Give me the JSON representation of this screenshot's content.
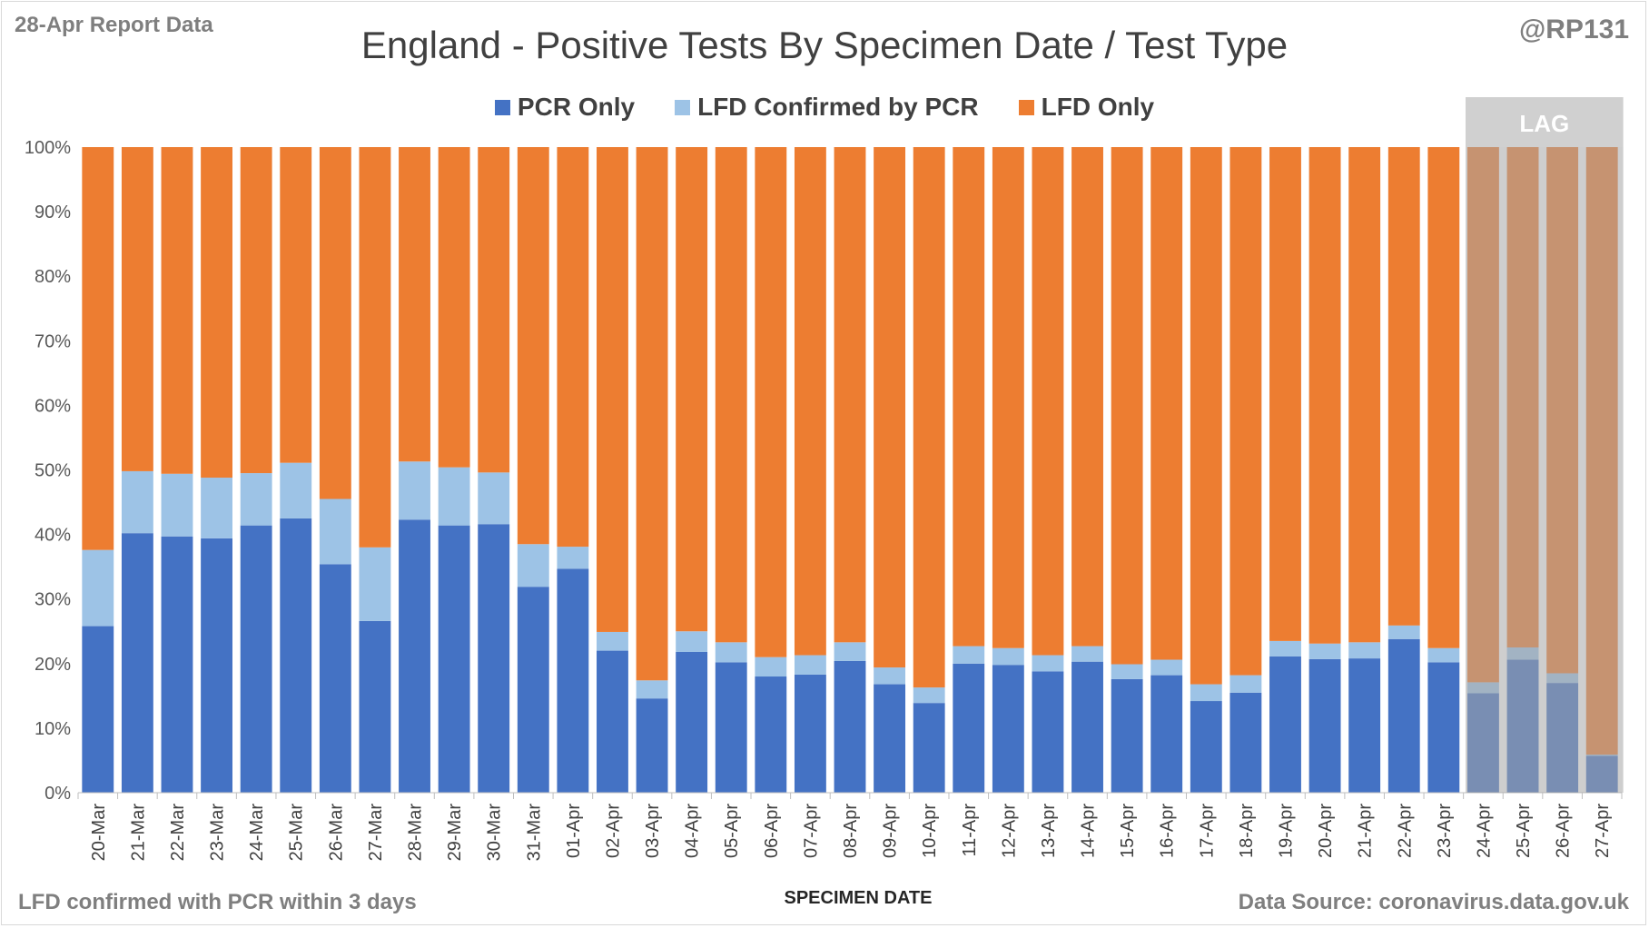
{
  "report_label": "28-Apr Report Data",
  "handle": "@RP131",
  "footnote": "LFD confirmed with PCR within 3 days",
  "source": "Data Source: coronavirus.data.gov.uk",
  "colors": {
    "pcr_only": "#4472c4",
    "lfd_confirmed": "#9dc3e6",
    "lfd_only": "#ed7d31",
    "lag_overlay": "#a5a5a5"
  },
  "chart_data": {
    "type": "bar",
    "stacked": true,
    "percent_stacked": true,
    "title": "England - Positive Tests By Specimen Date / Test Type",
    "xlabel": "SPECIMEN DATE",
    "ylabel": "",
    "ylim": [
      0,
      100
    ],
    "yticks": [
      "0%",
      "10%",
      "20%",
      "30%",
      "40%",
      "50%",
      "60%",
      "70%",
      "80%",
      "90%",
      "100%"
    ],
    "grid": false,
    "legend_position": "top-center",
    "categories": [
      "20-Mar",
      "21-Mar",
      "22-Mar",
      "23-Mar",
      "24-Mar",
      "25-Mar",
      "26-Mar",
      "27-Mar",
      "28-Mar",
      "29-Mar",
      "30-Mar",
      "31-Mar",
      "01-Apr",
      "02-Apr",
      "03-Apr",
      "04-Apr",
      "05-Apr",
      "06-Apr",
      "07-Apr",
      "08-Apr",
      "09-Apr",
      "10-Apr",
      "11-Apr",
      "12-Apr",
      "13-Apr",
      "14-Apr",
      "15-Apr",
      "16-Apr",
      "17-Apr",
      "18-Apr",
      "19-Apr",
      "20-Apr",
      "21-Apr",
      "22-Apr",
      "23-Apr",
      "24-Apr",
      "25-Apr",
      "26-Apr",
      "27-Apr"
    ],
    "series": [
      {
        "name": "PCR Only",
        "values": [
          25.8,
          40.2,
          39.7,
          39.4,
          41.4,
          42.5,
          35.4,
          26.6,
          42.3,
          41.4,
          41.6,
          31.9,
          34.7,
          22.0,
          14.6,
          21.8,
          20.2,
          18.0,
          18.3,
          20.4,
          16.8,
          13.9,
          20.0,
          19.8,
          18.8,
          20.3,
          17.6,
          18.2,
          14.2,
          15.5,
          21.1,
          20.7,
          20.8,
          23.8,
          20.2,
          15.4,
          20.6,
          17.0,
          5.7
        ]
      },
      {
        "name": "LFD Confirmed by PCR",
        "values": [
          11.8,
          9.6,
          9.7,
          9.4,
          8.1,
          8.6,
          10.1,
          11.4,
          9.0,
          9.0,
          8.0,
          6.6,
          3.4,
          2.9,
          2.8,
          3.2,
          3.1,
          3.0,
          3.0,
          2.9,
          2.6,
          2.4,
          2.7,
          2.6,
          2.5,
          2.4,
          2.3,
          2.4,
          2.6,
          2.7,
          2.4,
          2.4,
          2.5,
          2.1,
          2.2,
          1.7,
          1.9,
          1.5,
          0.2
        ]
      },
      {
        "name": "LFD Only",
        "values": [
          62.4,
          50.2,
          50.6,
          51.2,
          50.5,
          48.9,
          54.5,
          62.0,
          48.7,
          49.6,
          50.4,
          61.5,
          61.9,
          75.1,
          82.6,
          75.0,
          76.7,
          79.0,
          78.7,
          76.7,
          80.6,
          83.7,
          77.3,
          77.6,
          78.7,
          77.3,
          80.1,
          79.4,
          83.2,
          81.8,
          76.5,
          76.9,
          76.7,
          74.1,
          77.6,
          82.9,
          77.5,
          81.5,
          94.1
        ]
      }
    ],
    "annotations": [
      {
        "label": "LAG",
        "from": "24-Apr",
        "to": "27-Apr"
      }
    ]
  }
}
